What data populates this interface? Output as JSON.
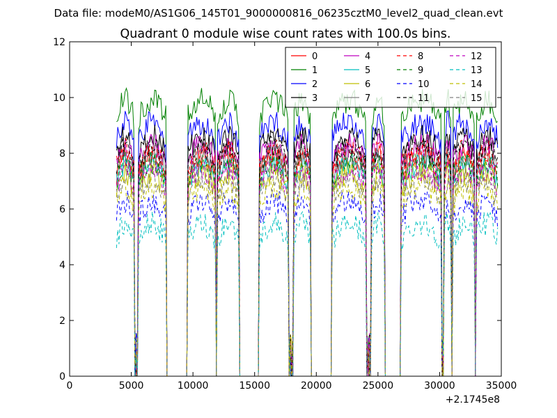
{
  "suptitle": "Data file: modeM0/AS1G06_145T01_9000000816_06235cztM0_level2_quad_clean.evt",
  "chart_data": {
    "type": "line",
    "title": "Quadrant 0 module wise count rates with 100.0s bins.",
    "xlabel": "",
    "ylabel": "",
    "x_offset_label": "+2.1745e8",
    "xlim": [
      0,
      35000
    ],
    "ylim": [
      0,
      12
    ],
    "xticks": [
      0,
      5000,
      10000,
      15000,
      20000,
      25000,
      30000,
      35000
    ],
    "yticks": [
      0,
      2,
      4,
      6,
      8,
      10,
      12
    ],
    "grid": false,
    "legend_position": "top-right",
    "legend_columns": 4,
    "segments": [
      [
        3800,
        5200
      ],
      [
        5600,
        7800
      ],
      [
        9600,
        11800
      ],
      [
        12000,
        13700
      ],
      [
        15400,
        17700
      ],
      [
        18200,
        19500
      ],
      [
        21300,
        24000
      ],
      [
        24500,
        25500
      ],
      [
        26900,
        30100
      ],
      [
        30400,
        30900
      ],
      [
        31100,
        32800
      ],
      [
        33000,
        34700
      ]
    ],
    "dips": [
      [
        5200,
        5600
      ],
      [
        11800,
        12000
      ],
      [
        17700,
        18200
      ],
      [
        24000,
        24500
      ],
      [
        30100,
        30400
      ],
      [
        30900,
        31100
      ],
      [
        32800,
        33000
      ]
    ],
    "gaps": [
      [
        7800,
        9600
      ],
      [
        13700,
        15400
      ],
      [
        19500,
        21300
      ],
      [
        25500,
        26900
      ]
    ],
    "series": [
      {
        "name": "0",
        "color": "#ff0000",
        "dash": "solid",
        "level": 7.6
      },
      {
        "name": "1",
        "color": "#008000",
        "dash": "solid",
        "level": 9.6
      },
      {
        "name": "2",
        "color": "#0000ff",
        "dash": "solid",
        "level": 8.8
      },
      {
        "name": "3",
        "color": "#000000",
        "dash": "solid",
        "level": 8.3
      },
      {
        "name": "4",
        "color": "#bf00bf",
        "dash": "solid",
        "level": 8.0
      },
      {
        "name": "5",
        "color": "#00bfbf",
        "dash": "solid",
        "level": 7.3
      },
      {
        "name": "6",
        "color": "#bfbf00",
        "dash": "solid",
        "level": 7.0
      },
      {
        "name": "7",
        "color": "#808080",
        "dash": "solid",
        "level": 7.7
      },
      {
        "name": "8",
        "color": "#ff0000",
        "dash": "dashed",
        "level": 7.8
      },
      {
        "name": "9",
        "color": "#008000",
        "dash": "dashed",
        "level": 7.4
      },
      {
        "name": "10",
        "color": "#0000ff",
        "dash": "dashed",
        "level": 6.0
      },
      {
        "name": "11",
        "color": "#000000",
        "dash": "dashed",
        "level": 7.9
      },
      {
        "name": "12",
        "color": "#bf00bf",
        "dash": "dashed",
        "level": 7.1
      },
      {
        "name": "13",
        "color": "#00bfbf",
        "dash": "dashed",
        "level": 5.2
      },
      {
        "name": "14",
        "color": "#bfbf00",
        "dash": "dashed",
        "level": 6.5
      },
      {
        "name": "15",
        "color": "#808080",
        "dash": "dashed",
        "level": 6.8
      }
    ]
  }
}
